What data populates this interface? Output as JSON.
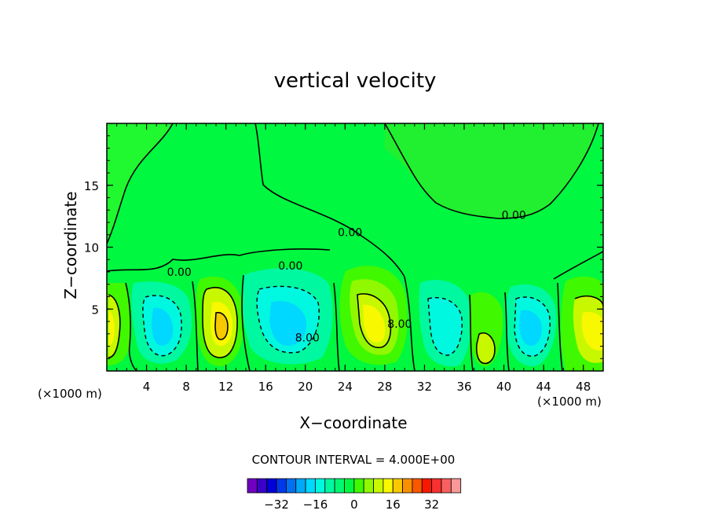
{
  "chart_data": {
    "type": "contour",
    "title": "vertical velocity",
    "xlabel": "X−coordinate",
    "ylabel": "Z−coordinate",
    "x_scale_note": "(×1000 m)",
    "x_ticks": [
      4,
      8,
      12,
      16,
      20,
      24,
      28,
      32,
      36,
      40,
      44,
      48
    ],
    "y_ticks": [
      5,
      10,
      15
    ],
    "xlim": [
      0,
      50
    ],
    "ylim": [
      0,
      20
    ],
    "contour_interval": "CONTOUR INTERVAL = 4.000E+00",
    "contour_labels": [
      {
        "text": "0.00",
        "x": 7.3,
        "z": 8.0
      },
      {
        "text": "0.00",
        "x": 18.5,
        "z": 8.5
      },
      {
        "text": "0.00",
        "x": 24.5,
        "z": 11.2
      },
      {
        "text": "0.00",
        "x": 41.0,
        "z": 12.6
      },
      {
        "text": "8.00",
        "x": 20.2,
        "z": 2.7
      },
      {
        "text": "8.00",
        "x": 29.5,
        "z": 3.8
      }
    ],
    "colorbar": {
      "ticks": [
        "−32",
        "−16",
        "0",
        "16",
        "32"
      ],
      "colors": [
        "#7000c0",
        "#3a00c8",
        "#0000d8",
        "#0038e8",
        "#0070f0",
        "#00a8f8",
        "#00d8ff",
        "#00f8e0",
        "#00f8a0",
        "#00f870",
        "#00f840",
        "#40f800",
        "#90f800",
        "#c8f800",
        "#f8f800",
        "#f8c800",
        "#f89000",
        "#f85800",
        "#f81800",
        "#f83030",
        "#f86060",
        "#f89898"
      ]
    }
  }
}
